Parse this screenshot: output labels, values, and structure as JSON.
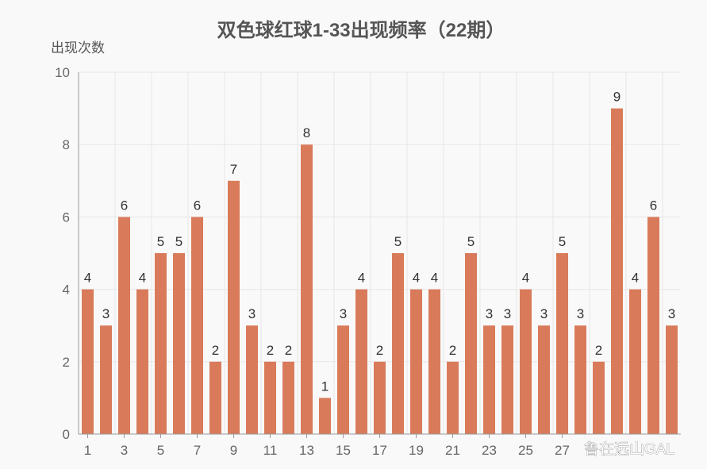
{
  "chart_data": {
    "type": "bar",
    "title": "双色球红球1-33出现频率（22期）",
    "ylabel": "出现次数",
    "xlabel": "",
    "categories": [
      "1",
      "2",
      "3",
      "4",
      "5",
      "6",
      "7",
      "8",
      "9",
      "10",
      "11",
      "12",
      "13",
      "14",
      "15",
      "16",
      "17",
      "18",
      "19",
      "20",
      "21",
      "22",
      "23",
      "24",
      "25",
      "26",
      "27",
      "28",
      "29",
      "30",
      "31",
      "32",
      "33"
    ],
    "values": [
      4,
      3,
      6,
      4,
      5,
      5,
      6,
      2,
      7,
      3,
      2,
      2,
      8,
      1,
      3,
      4,
      2,
      5,
      4,
      4,
      2,
      5,
      3,
      3,
      4,
      3,
      5,
      3,
      2,
      9,
      4,
      6,
      3
    ],
    "x_tick_labels": [
      "1",
      "3",
      "5",
      "7",
      "9",
      "11",
      "13",
      "15",
      "17",
      "19",
      "21",
      "23",
      "25",
      "27"
    ],
    "y_ticks": [
      0,
      2,
      4,
      6,
      8,
      10
    ],
    "ylim": [
      0,
      10
    ],
    "grid": true,
    "colors": {
      "bar": "#d97b5a",
      "grid": "#e8e8e8",
      "axis": "#999999"
    }
  },
  "watermark": "鲁在远山GAL"
}
